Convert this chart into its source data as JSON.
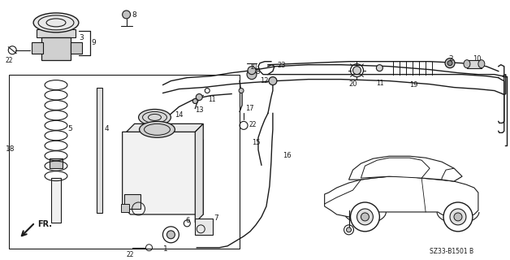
{
  "bg_color": "#ffffff",
  "line_color": "#1a1a1a",
  "fig_width": 6.28,
  "fig_height": 3.2,
  "dpi": 100,
  "diagram_code": "SZ33-B1501 B"
}
